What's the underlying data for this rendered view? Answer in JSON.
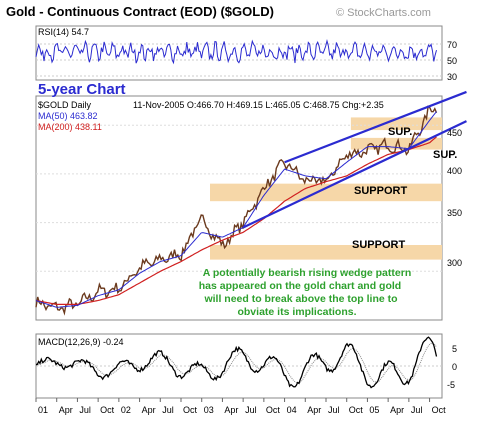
{
  "header": {
    "title": "Gold - Continuous Contract (EOD) ($GOLD)",
    "watermark": "© StockCharts.com",
    "period_label": "5-year Chart"
  },
  "rsi": {
    "label": "RSI(14) 54.7",
    "levels": [
      "70",
      "50",
      "30"
    ],
    "color": "#2b2bd0"
  },
  "price": {
    "symbol": "$GOLD Daily",
    "quote": "11-Nov-2005 O:466.70 H:469.15 L:465.05 C:468.75 Chg:+2.35",
    "ma50_label": "MA(50) 463.82",
    "ma200_label": "MA(200) 438.11",
    "ma50_color": "#2b2bd0",
    "ma200_color": "#d02020",
    "y_ticks": [
      "450",
      "400",
      "350",
      "300"
    ],
    "annotation": [
      "A potentially bearish rising wedge pattern",
      "has appeared on the gold chart and gold",
      "will need to break above the top line to",
      "obviate its implications."
    ],
    "annotation_color": "#2ea12e",
    "zone_color": "#f6d7a8",
    "wedge_color": "#2b2bd0",
    "zones": [
      {
        "label": "SUP.",
        "low": 445,
        "high": 458
      },
      {
        "label": "SUP.",
        "low": 425,
        "high": 437
      },
      {
        "label": "SUPPORT",
        "low": 372,
        "high": 390
      },
      {
        "label": "SUPPORT",
        "low": 312,
        "high": 327
      }
    ]
  },
  "macd": {
    "label": "MACD(12,26,9) -0.24",
    "levels": [
      "5",
      "0",
      "-5"
    ]
  },
  "x_axis": {
    "labels": [
      "01",
      "Apr",
      "Jul",
      "Oct",
      "02",
      "Apr",
      "Jul",
      "Oct",
      "03",
      "Apr",
      "Jul",
      "Oct",
      "04",
      "Apr",
      "Jul",
      "Oct",
      "05",
      "Apr",
      "Jul",
      "Oct"
    ]
  },
  "chart_data": {
    "type": "line",
    "title": "Gold - Continuous Contract (EOD) ($GOLD)",
    "x_labels": [
      "01",
      "Apr",
      "Jul",
      "Oct",
      "02",
      "Apr",
      "Jul",
      "Oct",
      "03",
      "Apr",
      "Jul",
      "Oct",
      "04",
      "Apr",
      "Jul",
      "Oct",
      "05",
      "Apr",
      "Jul",
      "Oct"
    ],
    "x_range": [
      "2001-01",
      "2005-11"
    ],
    "price_range": [
      250,
      480
    ],
    "price_series": {
      "name": "$GOLD Daily",
      "dates": [
        "2001-01",
        "2001-04",
        "2001-07",
        "2001-10",
        "2002-01",
        "2002-04",
        "2002-07",
        "2002-10",
        "2003-01",
        "2003-04",
        "2003-07",
        "2003-10",
        "2004-01",
        "2004-04",
        "2004-07",
        "2004-10",
        "2005-01",
        "2005-04",
        "2005-07",
        "2005-10",
        "2005-11"
      ],
      "values": [
        268,
        262,
        266,
        279,
        282,
        304,
        312,
        318,
        354,
        326,
        350,
        385,
        412,
        393,
        392,
        420,
        424,
        430,
        425,
        465,
        469
      ]
    },
    "ma50": [
      270,
      263,
      265,
      275,
      281,
      298,
      310,
      316,
      340,
      335,
      345,
      378,
      405,
      398,
      395,
      412,
      428,
      428,
      426,
      455,
      464
    ],
    "ma200": [
      270,
      266,
      266,
      270,
      276,
      288,
      300,
      310,
      322,
      332,
      340,
      354,
      372,
      385,
      392,
      398,
      410,
      420,
      425,
      432,
      438
    ],
    "wedge_upper": {
      "start": [
        "2004-01",
        412
      ],
      "end": [
        "2005-11",
        478
      ]
    },
    "wedge_lower": {
      "start": [
        "2003-07",
        345
      ],
      "end": [
        "2005-11",
        448
      ]
    },
    "rsi_levels": [
      70,
      50,
      30
    ],
    "macd_levels": [
      5,
      0,
      -5
    ]
  }
}
